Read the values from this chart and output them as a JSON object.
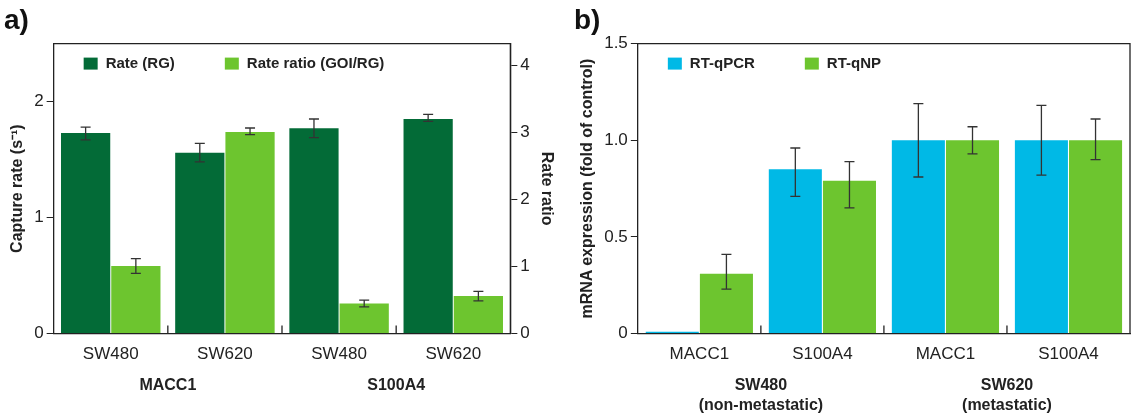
{
  "chart_data": [
    {
      "type": "bar",
      "title": "a)",
      "ylabel": "Capture rate (s⁻¹)",
      "y2label": "Rate ratio",
      "categories": [
        "SW480",
        "SW620",
        "SW480",
        "SW620"
      ],
      "series": [
        {
          "name": "Rate (RG)",
          "color": "#036b37",
          "values": [
            1.73,
            1.56,
            1.77,
            1.85
          ],
          "errors": [
            [
              1.67,
              1.78
            ],
            [
              1.48,
              1.64
            ],
            [
              1.69,
              1.85
            ],
            [
              1.83,
              1.89
            ]
          ]
        },
        {
          "name": "Rate ratio (GOI/RG)",
          "color": "#6dc52f",
          "axis": "y2",
          "values": [
            1.01,
            3.01,
            0.45,
            0.56
          ],
          "errors": [
            [
              0.9,
              1.12
            ],
            [
              2.97,
              3.07
            ],
            [
              0.4,
              0.5
            ],
            [
              0.49,
              0.63
            ]
          ]
        }
      ],
      "ylim": [
        0,
        2.5
      ],
      "yticks": [
        0,
        1,
        2
      ],
      "y2lim": [
        0,
        4.33
      ],
      "y2ticks": [
        0,
        1,
        2,
        3,
        4
      ],
      "legend": "top left",
      "grid": false,
      "annotations": [
        "MACC1",
        "S100A4"
      ]
    },
    {
      "type": "bar",
      "title": "b)",
      "ylabel": "mRNA expression (fold of control)",
      "categories": [
        "MACC1",
        "S100A4",
        "MACC1",
        "S100A4"
      ],
      "series": [
        {
          "name": "RT-qPCR",
          "color": "#00b9e6",
          "values": [
            0.01,
            0.85,
            1.0,
            1.0
          ],
          "errors": [
            null,
            [
              0.71,
              0.96
            ],
            [
              0.81,
              1.19
            ],
            [
              0.82,
              1.18
            ]
          ]
        },
        {
          "name": "RT-qNP",
          "color": "#6dc52f",
          "values": [
            0.31,
            0.79,
            1.0,
            1.0
          ],
          "errors": [
            [
              0.23,
              0.41
            ],
            [
              0.65,
              0.89
            ],
            [
              0.93,
              1.07
            ],
            [
              0.9,
              1.11
            ]
          ]
        }
      ],
      "ylim": [
        0,
        1.5
      ],
      "yticks": [
        0,
        0.5,
        {
          "value": 1,
          "label": "1.0"
        },
        1.5
      ],
      "legend": "top left",
      "grid": false,
      "annotations": [
        "SW480\n(non-metastatic)",
        "SW620\n(metastatic)"
      ]
    }
  ]
}
